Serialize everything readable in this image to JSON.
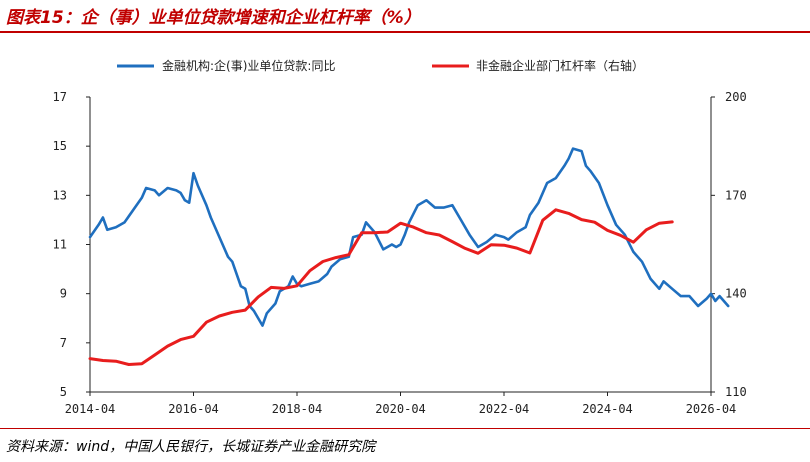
{
  "title": "图表15：企（事）业单位贷款增速和企业杠杆率（%）",
  "source": "资料来源：wind，中国人民银行，长城证券产业金融研究院",
  "chart_data": {
    "type": "line",
    "x_ticks": [
      "2014-04",
      "2016-04",
      "2018-04",
      "2020-04",
      "2022-04",
      "2024-04",
      "2026-04"
    ],
    "x_range": [
      "2014-04",
      "2026-04"
    ],
    "left_axis": {
      "range": [
        5,
        17
      ],
      "ticks": [
        "5",
        "7",
        "9",
        "11",
        "13",
        "15",
        "17"
      ]
    },
    "right_axis": {
      "range": [
        110,
        200
      ],
      "ticks": [
        "110",
        "140",
        "170",
        "200"
      ]
    },
    "grid": false,
    "legend_position": "top",
    "series": [
      {
        "name": "金融机构:企(事)业单位贷款:同比",
        "axis": "left",
        "color": "#1f6fbf",
        "points": [
          [
            "2014-04",
            11.3
          ],
          [
            "2014-06",
            11.8
          ],
          [
            "2014-07",
            12.1
          ],
          [
            "2014-08",
            11.6
          ],
          [
            "2014-10",
            11.7
          ],
          [
            "2014-12",
            11.9
          ],
          [
            "2015-02",
            12.4
          ],
          [
            "2015-04",
            12.9
          ],
          [
            "2015-05",
            13.3
          ],
          [
            "2015-07",
            13.2
          ],
          [
            "2015-08",
            13.0
          ],
          [
            "2015-10",
            13.3
          ],
          [
            "2015-12",
            13.2
          ],
          [
            "2016-01",
            13.1
          ],
          [
            "2016-02",
            12.8
          ],
          [
            "2016-03",
            12.7
          ],
          [
            "2016-04",
            13.9
          ],
          [
            "2016-05",
            13.4
          ],
          [
            "2016-07",
            12.6
          ],
          [
            "2016-08",
            12.1
          ],
          [
            "2016-10",
            11.3
          ],
          [
            "2016-12",
            10.5
          ],
          [
            "2017-01",
            10.3
          ],
          [
            "2017-03",
            9.3
          ],
          [
            "2017-04",
            9.2
          ],
          [
            "2017-05",
            8.5
          ],
          [
            "2017-06",
            8.3
          ],
          [
            "2017-08",
            7.7
          ],
          [
            "2017-09",
            8.2
          ],
          [
            "2017-11",
            8.6
          ],
          [
            "2017-12",
            9.1
          ],
          [
            "2018-02",
            9.3
          ],
          [
            "2018-03",
            9.7
          ],
          [
            "2018-04",
            9.4
          ],
          [
            "2018-05",
            9.3
          ],
          [
            "2018-07",
            9.4
          ],
          [
            "2018-09",
            9.5
          ],
          [
            "2018-11",
            9.8
          ],
          [
            "2018-12",
            10.1
          ],
          [
            "2019-02",
            10.4
          ],
          [
            "2019-04",
            10.5
          ],
          [
            "2019-05",
            11.3
          ],
          [
            "2019-07",
            11.4
          ],
          [
            "2019-08",
            11.9
          ],
          [
            "2019-10",
            11.5
          ],
          [
            "2019-12",
            10.8
          ],
          [
            "2020-02",
            11.0
          ],
          [
            "2020-03",
            10.9
          ],
          [
            "2020-04",
            11.0
          ],
          [
            "2020-05",
            11.4
          ],
          [
            "2020-06",
            11.9
          ],
          [
            "2020-08",
            12.6
          ],
          [
            "2020-10",
            12.8
          ],
          [
            "2020-12",
            12.5
          ],
          [
            "2021-02",
            12.5
          ],
          [
            "2021-04",
            12.6
          ],
          [
            "2021-06",
            12.0
          ],
          [
            "2021-08",
            11.4
          ],
          [
            "2021-10",
            10.9
          ],
          [
            "2021-12",
            11.1
          ],
          [
            "2022-02",
            11.4
          ],
          [
            "2022-04",
            11.3
          ],
          [
            "2022-05",
            11.2
          ],
          [
            "2022-07",
            11.5
          ],
          [
            "2022-09",
            11.7
          ],
          [
            "2022-10",
            12.2
          ],
          [
            "2022-12",
            12.7
          ],
          [
            "2023-02",
            13.5
          ],
          [
            "2023-04",
            13.7
          ],
          [
            "2023-06",
            14.2
          ],
          [
            "2023-07",
            14.5
          ],
          [
            "2023-08",
            14.9
          ],
          [
            "2023-10",
            14.8
          ],
          [
            "2023-11",
            14.2
          ],
          [
            "2023-12",
            14.0
          ],
          [
            "2024-02",
            13.5
          ],
          [
            "2024-04",
            12.6
          ],
          [
            "2024-06",
            11.8
          ],
          [
            "2024-08",
            11.4
          ],
          [
            "2024-10",
            10.7
          ],
          [
            "2024-12",
            10.3
          ],
          [
            "2025-02",
            9.6
          ],
          [
            "2025-04",
            9.2
          ],
          [
            "2025-05",
            9.5
          ],
          [
            "2025-07",
            9.2
          ],
          [
            "2025-09",
            8.9
          ],
          [
            "2025-11",
            8.9
          ],
          [
            "2026-01",
            8.5
          ],
          [
            "2026-03",
            8.8
          ],
          [
            "2026-04",
            9.0
          ],
          [
            "2026-05",
            8.7
          ],
          [
            "2026-06",
            8.9
          ],
          [
            "2026-08",
            8.5
          ]
        ]
      },
      {
        "name": "非金融企业部门杠杆率（右轴）",
        "axis": "right",
        "color": "#e81d1d",
        "points": [
          [
            "2014-04",
            120.2
          ],
          [
            "2014-07",
            119.6
          ],
          [
            "2014-10",
            119.4
          ],
          [
            "2015-01",
            118.4
          ],
          [
            "2015-04",
            118.6
          ],
          [
            "2015-07",
            121.3
          ],
          [
            "2015-10",
            124.0
          ],
          [
            "2016-01",
            126.0
          ],
          [
            "2016-04",
            127.0
          ],
          [
            "2016-07",
            131.3
          ],
          [
            "2016-10",
            133.2
          ],
          [
            "2017-01",
            134.3
          ],
          [
            "2017-04",
            135.0
          ],
          [
            "2017-07",
            139.0
          ],
          [
            "2017-10",
            141.9
          ],
          [
            "2018-01",
            141.6
          ],
          [
            "2018-04",
            142.4
          ],
          [
            "2018-07",
            147.0
          ],
          [
            "2018-10",
            149.8
          ],
          [
            "2019-01",
            151.0
          ],
          [
            "2019-04",
            151.9
          ],
          [
            "2019-07",
            158.6
          ],
          [
            "2019-10",
            158.6
          ],
          [
            "2020-01",
            158.8
          ],
          [
            "2020-04",
            161.5
          ],
          [
            "2020-07",
            160.3
          ],
          [
            "2020-10",
            158.6
          ],
          [
            "2021-01",
            157.9
          ],
          [
            "2021-04",
            155.9
          ],
          [
            "2021-07",
            153.8
          ],
          [
            "2021-10",
            152.3
          ],
          [
            "2022-01",
            154.9
          ],
          [
            "2022-04",
            154.8
          ],
          [
            "2022-07",
            153.9
          ],
          [
            "2022-10",
            152.4
          ],
          [
            "2023-01",
            162.4
          ],
          [
            "2023-04",
            165.6
          ],
          [
            "2023-07",
            164.5
          ],
          [
            "2023-10",
            162.6
          ],
          [
            "2024-01",
            161.8
          ],
          [
            "2024-04",
            159.3
          ],
          [
            "2024-07",
            157.8
          ],
          [
            "2024-10",
            155.7
          ],
          [
            "2025-01",
            159.5
          ],
          [
            "2025-04",
            161.5
          ],
          [
            "2025-07",
            161.9
          ]
        ]
      }
    ]
  }
}
